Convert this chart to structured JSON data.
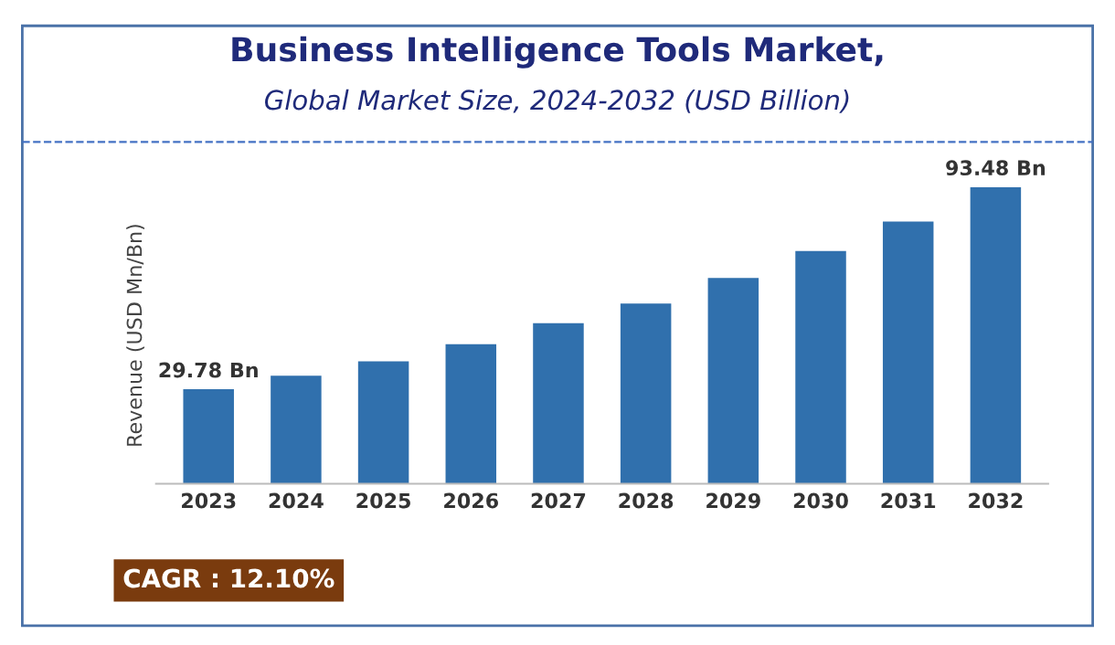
{
  "chart_data": {
    "type": "bar",
    "title": "Business Intelligence Tools Market,",
    "subtitle": "Global Market Size, 2024-2032 (USD Billion)",
    "ylabel": "Revenue (USD Mn/Bn)",
    "categories": [
      "2023",
      "2024",
      "2025",
      "2026",
      "2027",
      "2028",
      "2029",
      "2030",
      "2031",
      "2032"
    ],
    "values": [
      29.78,
      34.04,
      38.54,
      43.99,
      50.62,
      56.78,
      64.83,
      73.35,
      82.59,
      93.48
    ],
    "value_labels": [
      "29.78 Bn",
      null,
      null,
      null,
      null,
      null,
      null,
      null,
      null,
      "93.48 Bn"
    ],
    "color": "#3070ad",
    "grid": false,
    "annotations": [
      "CAGR : 12.10%"
    ]
  }
}
